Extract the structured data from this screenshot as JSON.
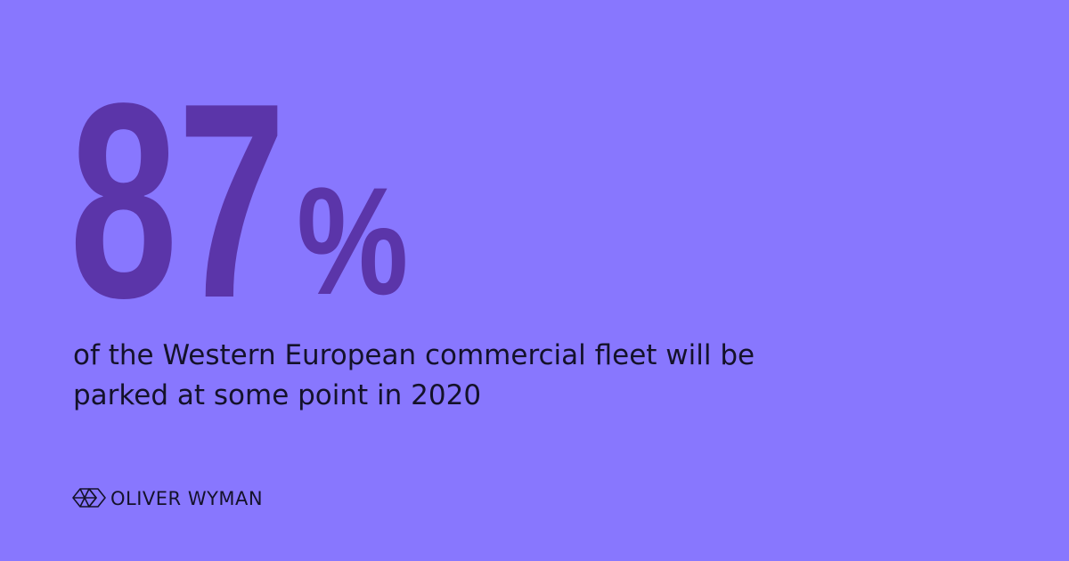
{
  "stat": {
    "number": "87",
    "unit": "%"
  },
  "description": {
    "lines": [
      "of the Western European commercial fleet will be",
      "parked at some point in 2020"
    ]
  },
  "brand": "OLIVER WYMAN"
}
